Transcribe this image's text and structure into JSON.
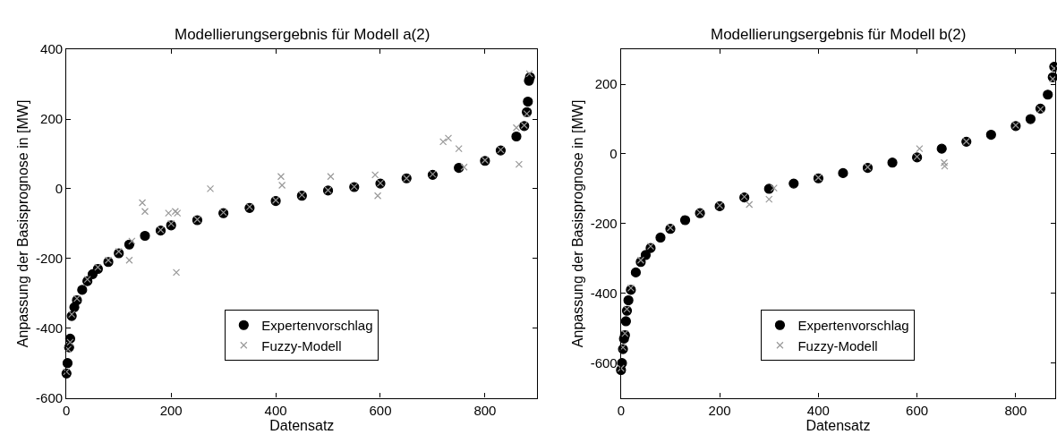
{
  "chart_data": [
    {
      "type": "scatter",
      "title": "Modellierungsergebnis für Modell a(2)",
      "xlabel": "Datensatz",
      "ylabel": "Anpassung der Basisprognose in [MW]",
      "xlim": [
        0,
        900
      ],
      "xticks": [
        0,
        200,
        400,
        600,
        800
      ],
      "ylim": [
        -600,
        400
      ],
      "yticks": [
        -600,
        -400,
        -200,
        0,
        200,
        400
      ],
      "legend": "bottom",
      "series": [
        {
          "name": "Expertenvorschlag",
          "color": "#000000",
          "marker": "circle",
          "x": [
            0,
            2,
            5,
            7,
            10,
            15,
            20,
            30,
            40,
            50,
            60,
            80,
            100,
            120,
            150,
            180,
            200,
            250,
            300,
            350,
            400,
            450,
            500,
            550,
            600,
            650,
            700,
            750,
            800,
            830,
            860,
            875,
            880,
            882,
            884,
            886
          ],
          "values": [
            -530,
            -500,
            -455,
            -430,
            -365,
            -340,
            -320,
            -290,
            -265,
            -245,
            -230,
            -210,
            -185,
            -160,
            -135,
            -120,
            -105,
            -90,
            -70,
            -55,
            -35,
            -20,
            -5,
            5,
            15,
            30,
            40,
            60,
            80,
            110,
            150,
            180,
            220,
            250,
            310,
            320
          ]
        },
        {
          "name": "Fuzzy-Modell",
          "color": "#999999",
          "marker": "cross",
          "x": [
            0,
            3,
            7,
            10,
            20,
            40,
            60,
            80,
            100,
            120,
            125,
            145,
            150,
            180,
            195,
            200,
            208,
            210,
            212,
            250,
            275,
            300,
            350,
            400,
            410,
            412,
            450,
            500,
            505,
            550,
            590,
            595,
            600,
            650,
            700,
            720,
            730,
            750,
            760,
            800,
            830,
            860,
            865,
            875,
            880,
            885
          ],
          "values": [
            -525,
            -460,
            -440,
            -360,
            -315,
            -260,
            -225,
            -205,
            -180,
            -205,
            -150,
            -40,
            -65,
            -118,
            -70,
            -100,
            -65,
            -240,
            -70,
            -88,
            0,
            -68,
            -52,
            -33,
            35,
            10,
            -18,
            -4,
            35,
            6,
            40,
            -20,
            16,
            30,
            42,
            135,
            145,
            115,
            62,
            82,
            112,
            175,
            70,
            182,
            215,
            330
          ]
        }
      ]
    },
    {
      "type": "scatter",
      "title": "Modellierungsergebnis für Modell b(2)",
      "xlabel": "Datensatz",
      "ylabel": "Anpassung der Basisprognose in [MW]",
      "xlim": [
        0,
        880
      ],
      "xticks": [
        0,
        200,
        400,
        600,
        800
      ],
      "ylim": [
        -700,
        300
      ],
      "yticks": [
        -600,
        -400,
        -200,
        0,
        200
      ],
      "legend": "bottom",
      "series": [
        {
          "name": "Expertenvorschlag",
          "color": "#000000",
          "marker": "circle",
          "x": [
            0,
            2,
            4,
            6,
            8,
            10,
            12,
            15,
            20,
            30,
            40,
            50,
            60,
            80,
            100,
            130,
            160,
            200,
            250,
            300,
            350,
            400,
            450,
            500,
            550,
            600,
            650,
            700,
            750,
            800,
            830,
            850,
            865,
            875,
            878
          ],
          "values": [
            -620,
            -600,
            -560,
            -530,
            -520,
            -480,
            -450,
            -420,
            -390,
            -340,
            -310,
            -290,
            -270,
            -240,
            -215,
            -190,
            -170,
            -150,
            -125,
            -100,
            -85,
            -70,
            -55,
            -40,
            -25,
            -10,
            15,
            35,
            55,
            80,
            100,
            130,
            170,
            220,
            250
          ]
        },
        {
          "name": "Fuzzy-Modell",
          "color": "#999999",
          "marker": "cross",
          "x": [
            0,
            4,
            8,
            12,
            20,
            40,
            60,
            100,
            160,
            200,
            250,
            260,
            300,
            310,
            400,
            500,
            600,
            605,
            655,
            656,
            700,
            800,
            850,
            875,
            878
          ],
          "values": [
            -615,
            -555,
            -515,
            -445,
            -385,
            -305,
            -265,
            -212,
            -168,
            -148,
            -123,
            -145,
            -130,
            -98,
            -68,
            -38,
            -8,
            15,
            -25,
            -35,
            36,
            82,
            128,
            215,
            245
          ]
        }
      ]
    }
  ]
}
